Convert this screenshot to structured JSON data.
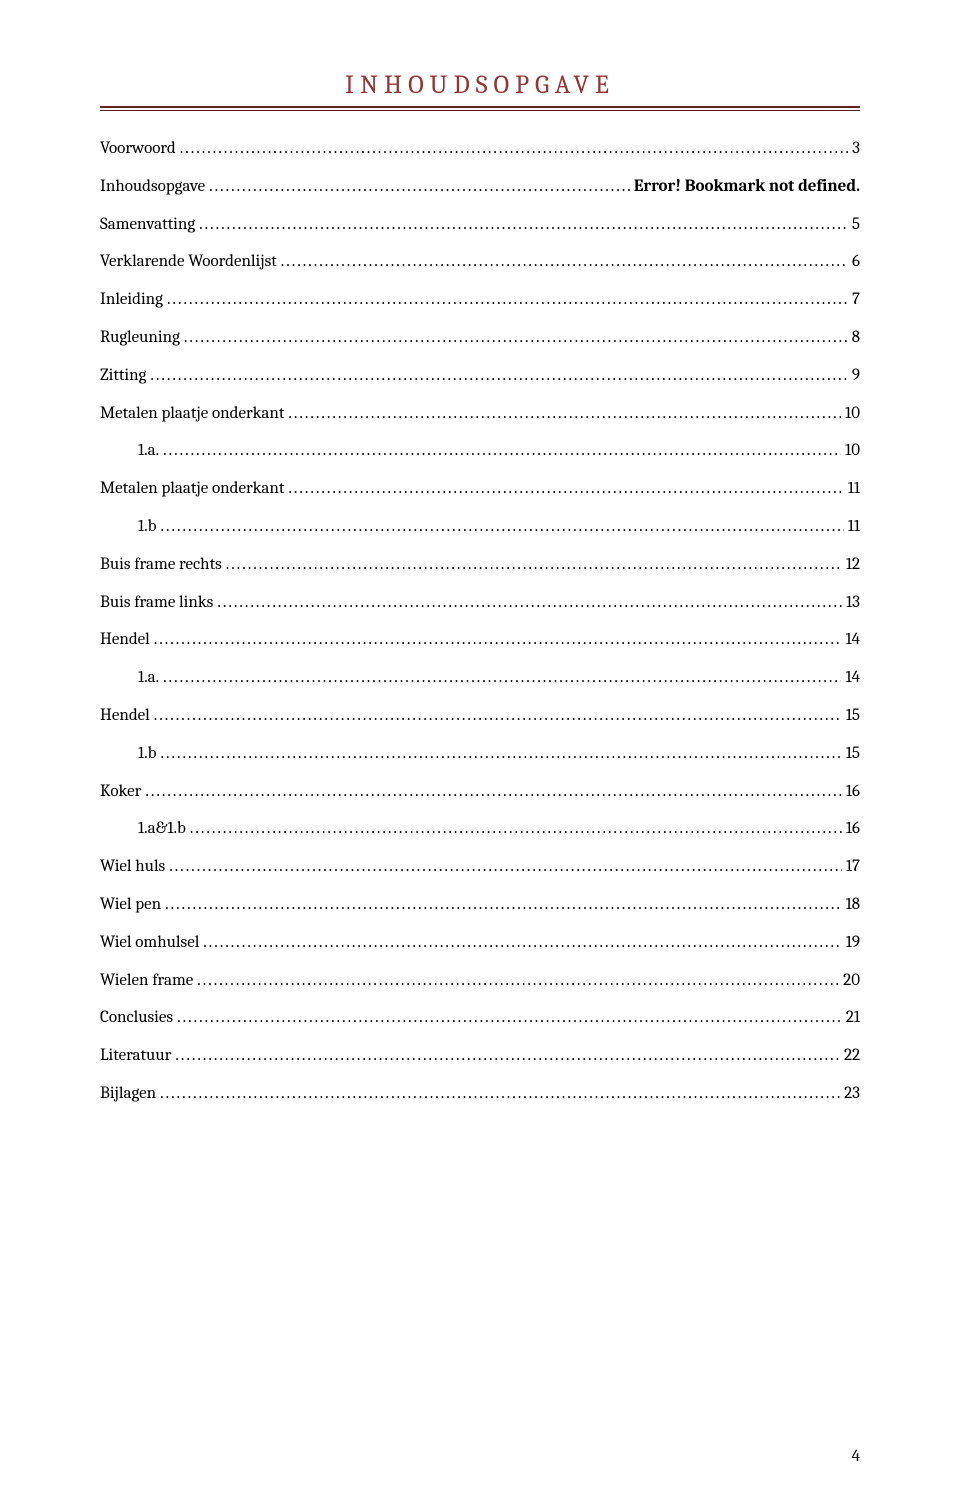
{
  "heading": {
    "text": "INHOUDSOPGAVE",
    "color": "#943634",
    "rule_color": "#622423"
  },
  "entries": [
    {
      "title": "Voorwoord",
      "page": "3",
      "indent": false
    },
    {
      "title": "Inhoudsopgave",
      "suffix_prefix": " ",
      "suffix_bold": "Error! Bookmark not defined.",
      "indent": false
    },
    {
      "title": "Samenvatting",
      "page": "5",
      "indent": false
    },
    {
      "title": "Verklarende Woordenlijst",
      "page": "6",
      "indent": false
    },
    {
      "title": "Inleiding",
      "page": "7",
      "indent": false
    },
    {
      "title": "Rugleuning",
      "page": "8",
      "indent": false
    },
    {
      "title": "Zitting",
      "page": "9",
      "indent": false
    },
    {
      "title": "Metalen plaatje onderkant",
      "page": "10",
      "indent": false
    },
    {
      "title": "1.a.",
      "page": "10",
      "indent": true
    },
    {
      "title": "Metalen plaatje onderkant",
      "page": "11",
      "indent": false
    },
    {
      "title": "1.b",
      "page": "11",
      "indent": true
    },
    {
      "title": "Buis frame rechts",
      "page": "12",
      "indent": false
    },
    {
      "title": "Buis frame links",
      "page": "13",
      "indent": false
    },
    {
      "title": "Hendel",
      "page": "14",
      "indent": false
    },
    {
      "title": "1.a.",
      "page": "14",
      "indent": true
    },
    {
      "title": "Hendel",
      "page": "15",
      "indent": false
    },
    {
      "title": "1.b",
      "page": "15",
      "indent": true
    },
    {
      "title": "Koker",
      "page": "16",
      "indent": false
    },
    {
      "title": "1.a&1.b",
      "page": "16",
      "indent": true
    },
    {
      "title": "Wiel huls",
      "page": "17",
      "indent": false
    },
    {
      "title": "Wiel pen",
      "page": "18",
      "indent": false
    },
    {
      "title": "Wiel omhulsel",
      "page": "19",
      "indent": false
    },
    {
      "title": "Wielen frame",
      "page": "20",
      "indent": false
    },
    {
      "title": "Conclusies",
      "page": "21",
      "indent": false
    },
    {
      "title": "Literatuur",
      "page": "22",
      "indent": false
    },
    {
      "title": "Bijlagen",
      "page": "23",
      "indent": false
    }
  ],
  "page_number": "4"
}
